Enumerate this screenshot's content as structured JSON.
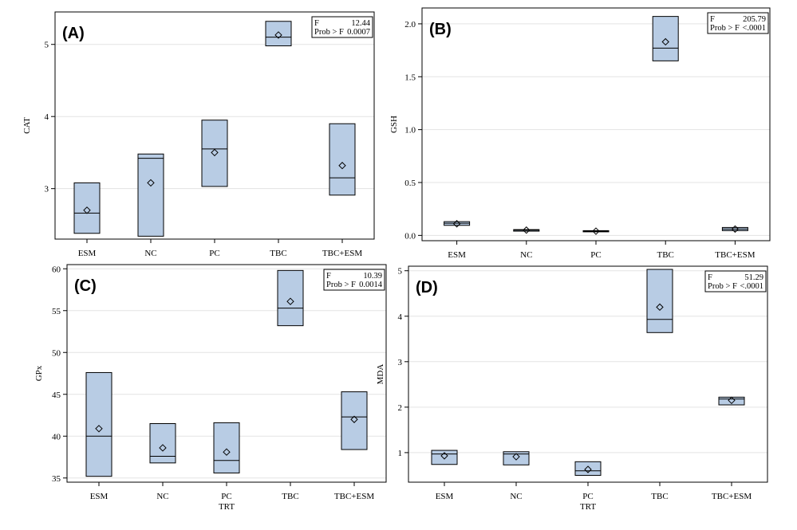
{
  "chart_data": [
    {
      "type": "box",
      "panel_label": "(A)",
      "ylabel": "CAT",
      "xlabel": "",
      "ylim": [
        2.3,
        5.45
      ],
      "yticks": [
        3,
        4,
        5
      ],
      "ytick_labels": [
        "3",
        "4",
        "5"
      ],
      "grid": true,
      "stats": {
        "f_label": "F",
        "f_value": "12.44",
        "p_label": "Prob > F",
        "p_value": "0.0007"
      },
      "categories": [
        "ESM",
        "NC",
        "PC",
        "TBC",
        "TBC+ESM"
      ],
      "boxes": [
        {
          "q1": 2.38,
          "median": 2.66,
          "q3": 3.08,
          "mean": 2.7
        },
        {
          "q1": 2.34,
          "median": 3.42,
          "q3": 3.48,
          "mean": 3.08
        },
        {
          "q1": 3.03,
          "median": 3.55,
          "q3": 3.95,
          "mean": 3.5
        },
        {
          "q1": 4.98,
          "median": 5.1,
          "q3": 5.32,
          "mean": 5.13
        },
        {
          "q1": 2.91,
          "median": 3.15,
          "q3": 3.9,
          "mean": 3.32
        }
      ]
    },
    {
      "type": "box",
      "panel_label": "(B)",
      "ylabel": "GSH",
      "xlabel": "",
      "ylim": [
        -0.05,
        2.15
      ],
      "yticks": [
        0,
        0.5,
        1.0,
        1.5,
        2.0
      ],
      "ytick_labels": [
        "0.0",
        "0.5",
        "1.0",
        "1.5",
        "2.0"
      ],
      "grid": true,
      "stats": {
        "f_label": "F",
        "f_value": "205.79",
        "p_label": "Prob > F",
        "p_value": "<.0001"
      },
      "categories": [
        "ESM",
        "NC",
        "PC",
        "TBC",
        "TBC+ESM"
      ],
      "boxes": [
        {
          "q1": 0.095,
          "median": 0.115,
          "q3": 0.13,
          "mean": 0.11
        },
        {
          "q1": 0.04,
          "median": 0.05,
          "q3": 0.055,
          "mean": 0.05
        },
        {
          "q1": 0.035,
          "median": 0.04,
          "q3": 0.045,
          "mean": 0.04
        },
        {
          "q1": 1.65,
          "median": 1.77,
          "q3": 2.07,
          "mean": 1.83
        },
        {
          "q1": 0.045,
          "median": 0.06,
          "q3": 0.075,
          "mean": 0.06
        }
      ]
    },
    {
      "type": "box",
      "panel_label": "(C)",
      "ylabel": "GPx",
      "xlabel": "TRT",
      "ylim": [
        34.5,
        60.5
      ],
      "yticks": [
        35,
        40,
        45,
        50,
        55,
        60
      ],
      "ytick_labels": [
        "35",
        "40",
        "45",
        "50",
        "55",
        "60"
      ],
      "grid": true,
      "stats": {
        "f_label": "F",
        "f_value": "10.39",
        "p_label": "Prob > F",
        "p_value": "0.0014"
      },
      "categories": [
        "ESM",
        "NC",
        "PC",
        "TBC",
        "TBC+ESM"
      ],
      "boxes": [
        {
          "q1": 35.2,
          "median": 40.0,
          "q3": 47.6,
          "mean": 40.9
        },
        {
          "q1": 36.8,
          "median": 37.6,
          "q3": 41.5,
          "mean": 38.6
        },
        {
          "q1": 35.6,
          "median": 37.1,
          "q3": 41.6,
          "mean": 38.1
        },
        {
          "q1": 53.2,
          "median": 55.3,
          "q3": 59.8,
          "mean": 56.1
        },
        {
          "q1": 38.4,
          "median": 42.3,
          "q3": 45.3,
          "mean": 42.0
        }
      ]
    },
    {
      "type": "box",
      "panel_label": "(D)",
      "ylabel": "MDA",
      "xlabel": "TRT",
      "ylim": [
        0.35,
        5.1
      ],
      "yticks": [
        1,
        2,
        3,
        4,
        5
      ],
      "ytick_labels": [
        "1",
        "2",
        "3",
        "4",
        "5"
      ],
      "grid": true,
      "stats": {
        "f_label": "F",
        "f_value": "51.29",
        "p_label": "Prob > F",
        "p_value": "<.0001"
      },
      "categories": [
        "ESM",
        "NC",
        "PC",
        "TBC",
        "TBC+ESM"
      ],
      "boxes": [
        {
          "q1": 0.74,
          "median": 0.97,
          "q3": 1.05,
          "mean": 0.93
        },
        {
          "q1": 0.73,
          "median": 0.97,
          "q3": 1.02,
          "mean": 0.91
        },
        {
          "q1": 0.5,
          "median": 0.6,
          "q3": 0.8,
          "mean": 0.63
        },
        {
          "q1": 3.64,
          "median": 3.93,
          "q3": 5.03,
          "mean": 4.2
        },
        {
          "q1": 2.05,
          "median": 2.18,
          "q3": 2.22,
          "mean": 2.15
        }
      ]
    }
  ]
}
